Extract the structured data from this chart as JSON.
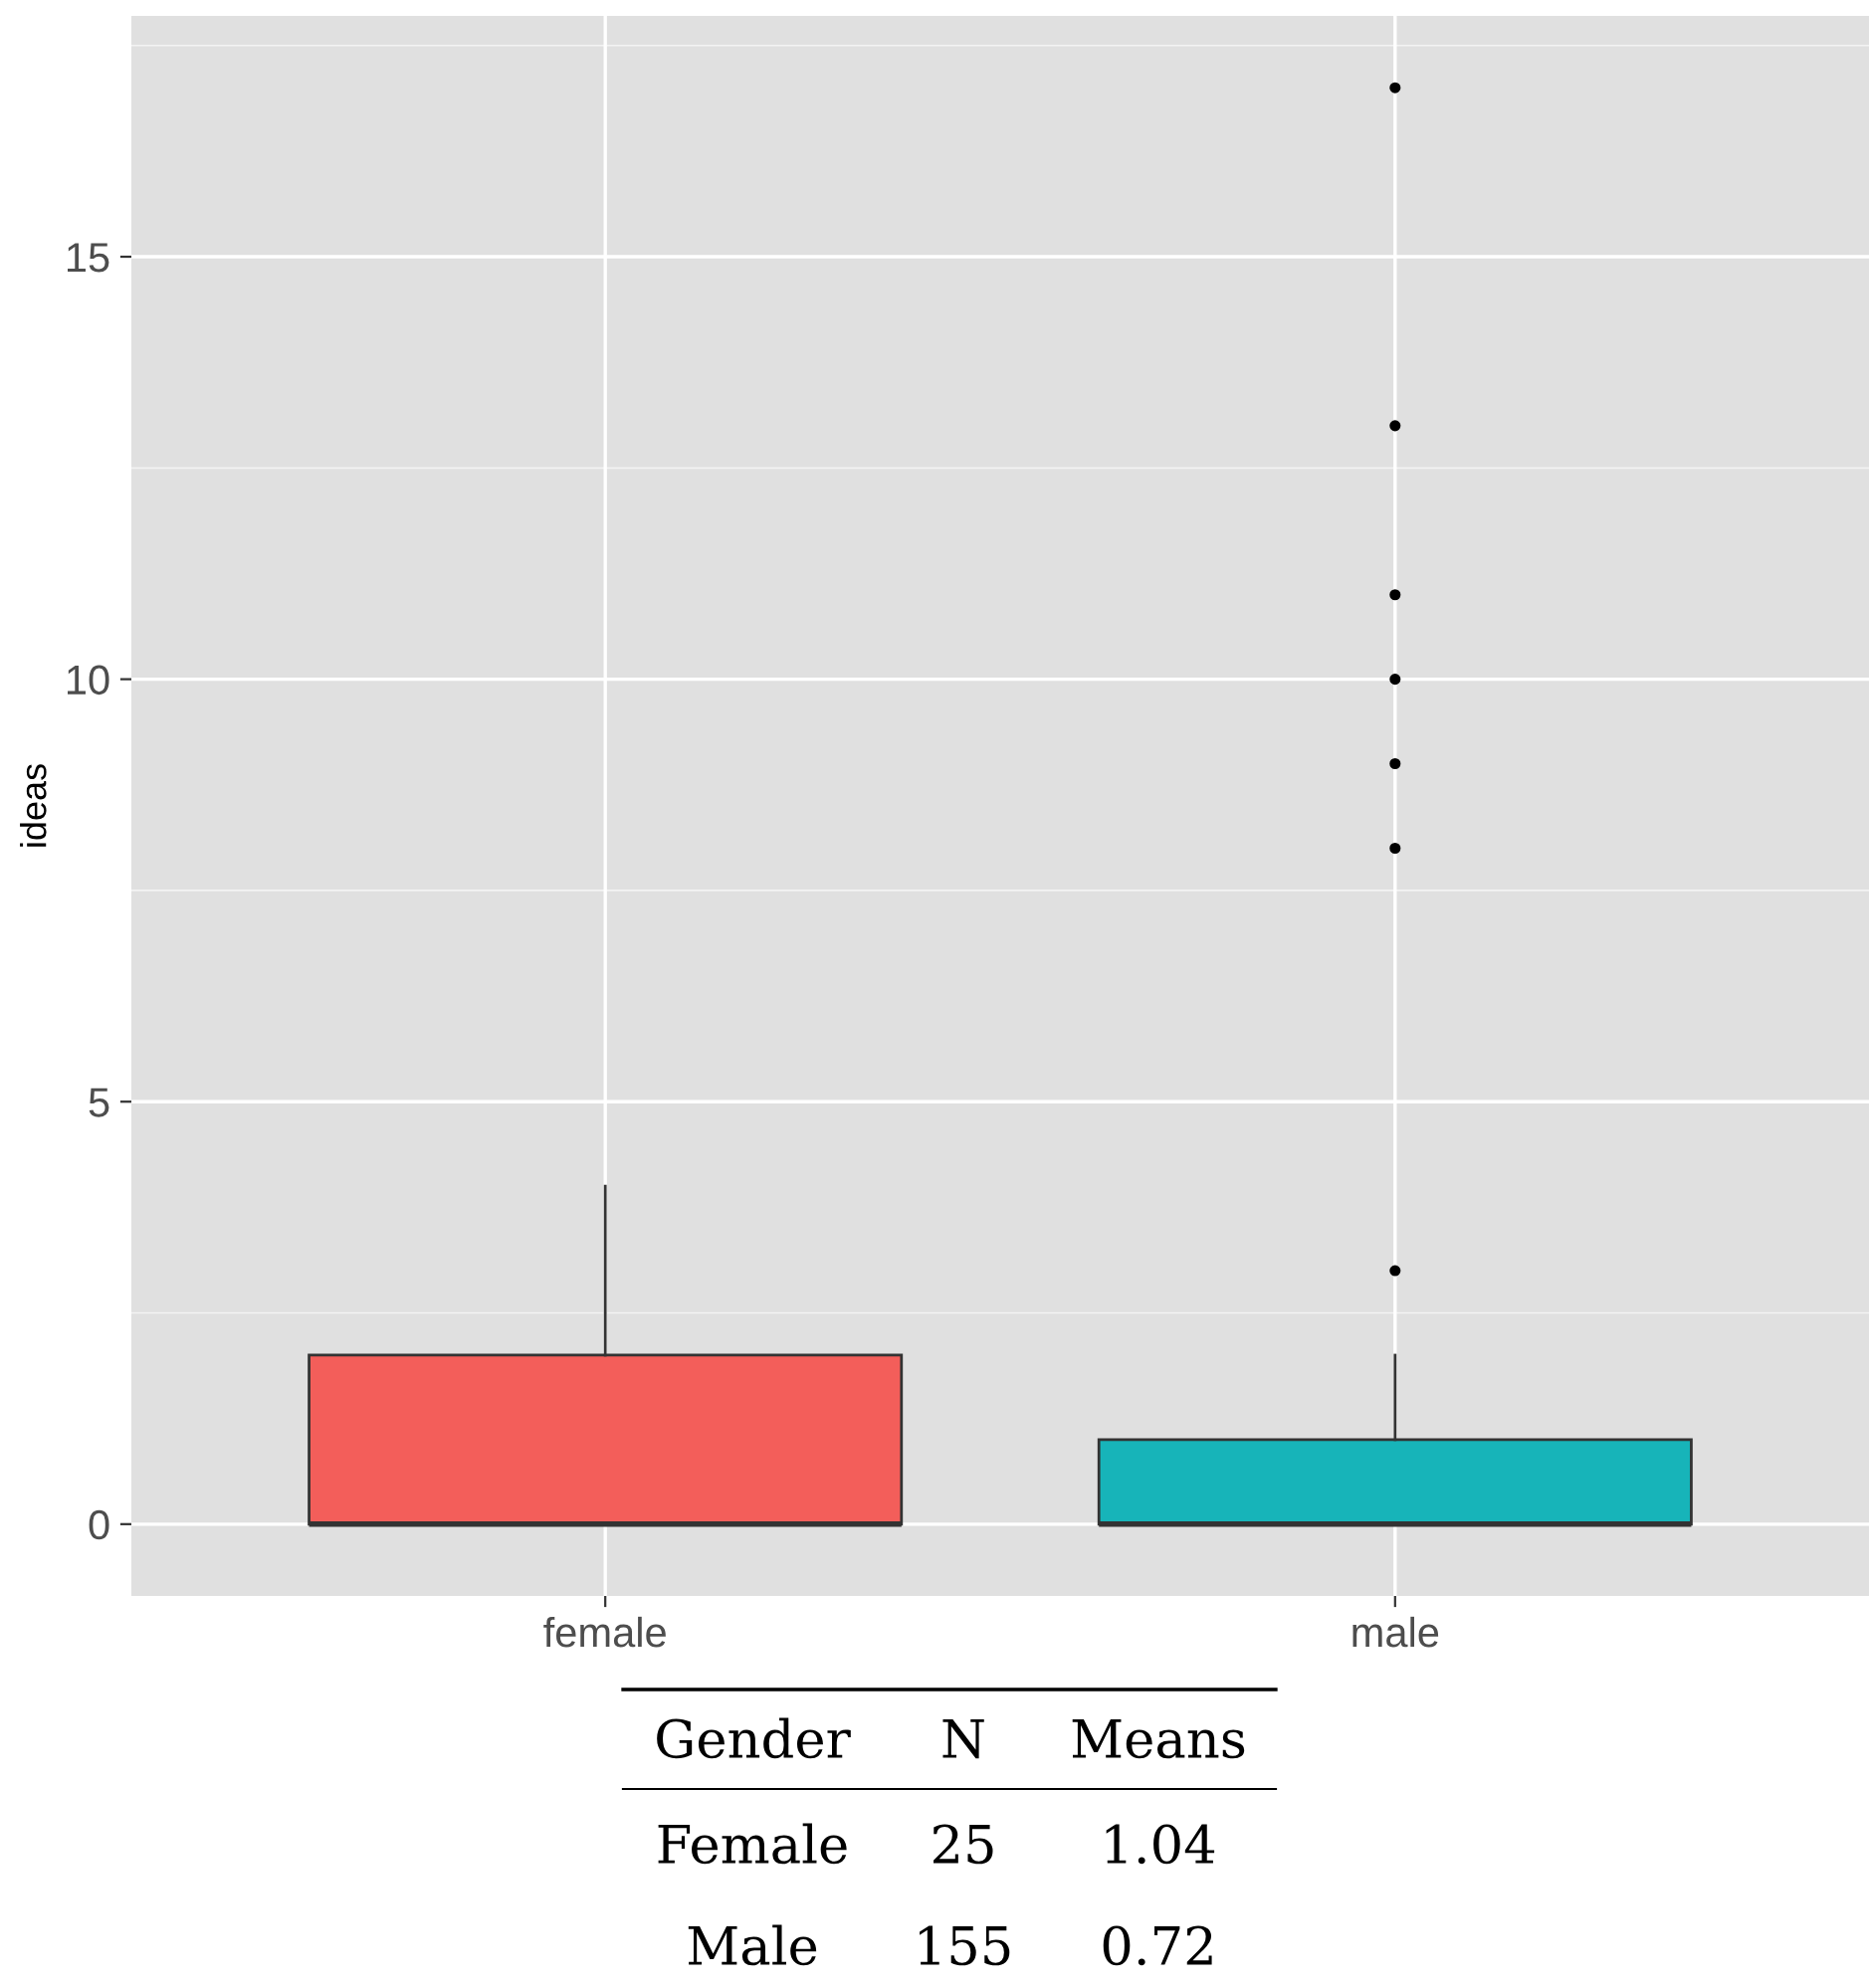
{
  "chart_data": {
    "type": "box",
    "ylabel": "ideas",
    "categories": [
      "female",
      "male"
    ],
    "boxes": [
      {
        "low": 0,
        "q1": 0,
        "median": 0,
        "q3": 2,
        "high": 4
      },
      {
        "low": 0,
        "q1": 0,
        "median": 0,
        "q3": 1,
        "high": 2,
        "outliers": [
          3,
          8,
          9,
          10,
          11,
          13,
          17
        ]
      }
    ],
    "colors": [
      "#f35e5a",
      "#17b4b9"
    ],
    "ylim": [
      -0.85,
      17.85
    ],
    "yticks": [
      0,
      5,
      10,
      15
    ],
    "grid": true,
    "annotations": [
      "Gender",
      "N",
      "Means",
      "Female",
      "25",
      "1.04",
      "Male",
      "155",
      "0.72"
    ]
  }
}
